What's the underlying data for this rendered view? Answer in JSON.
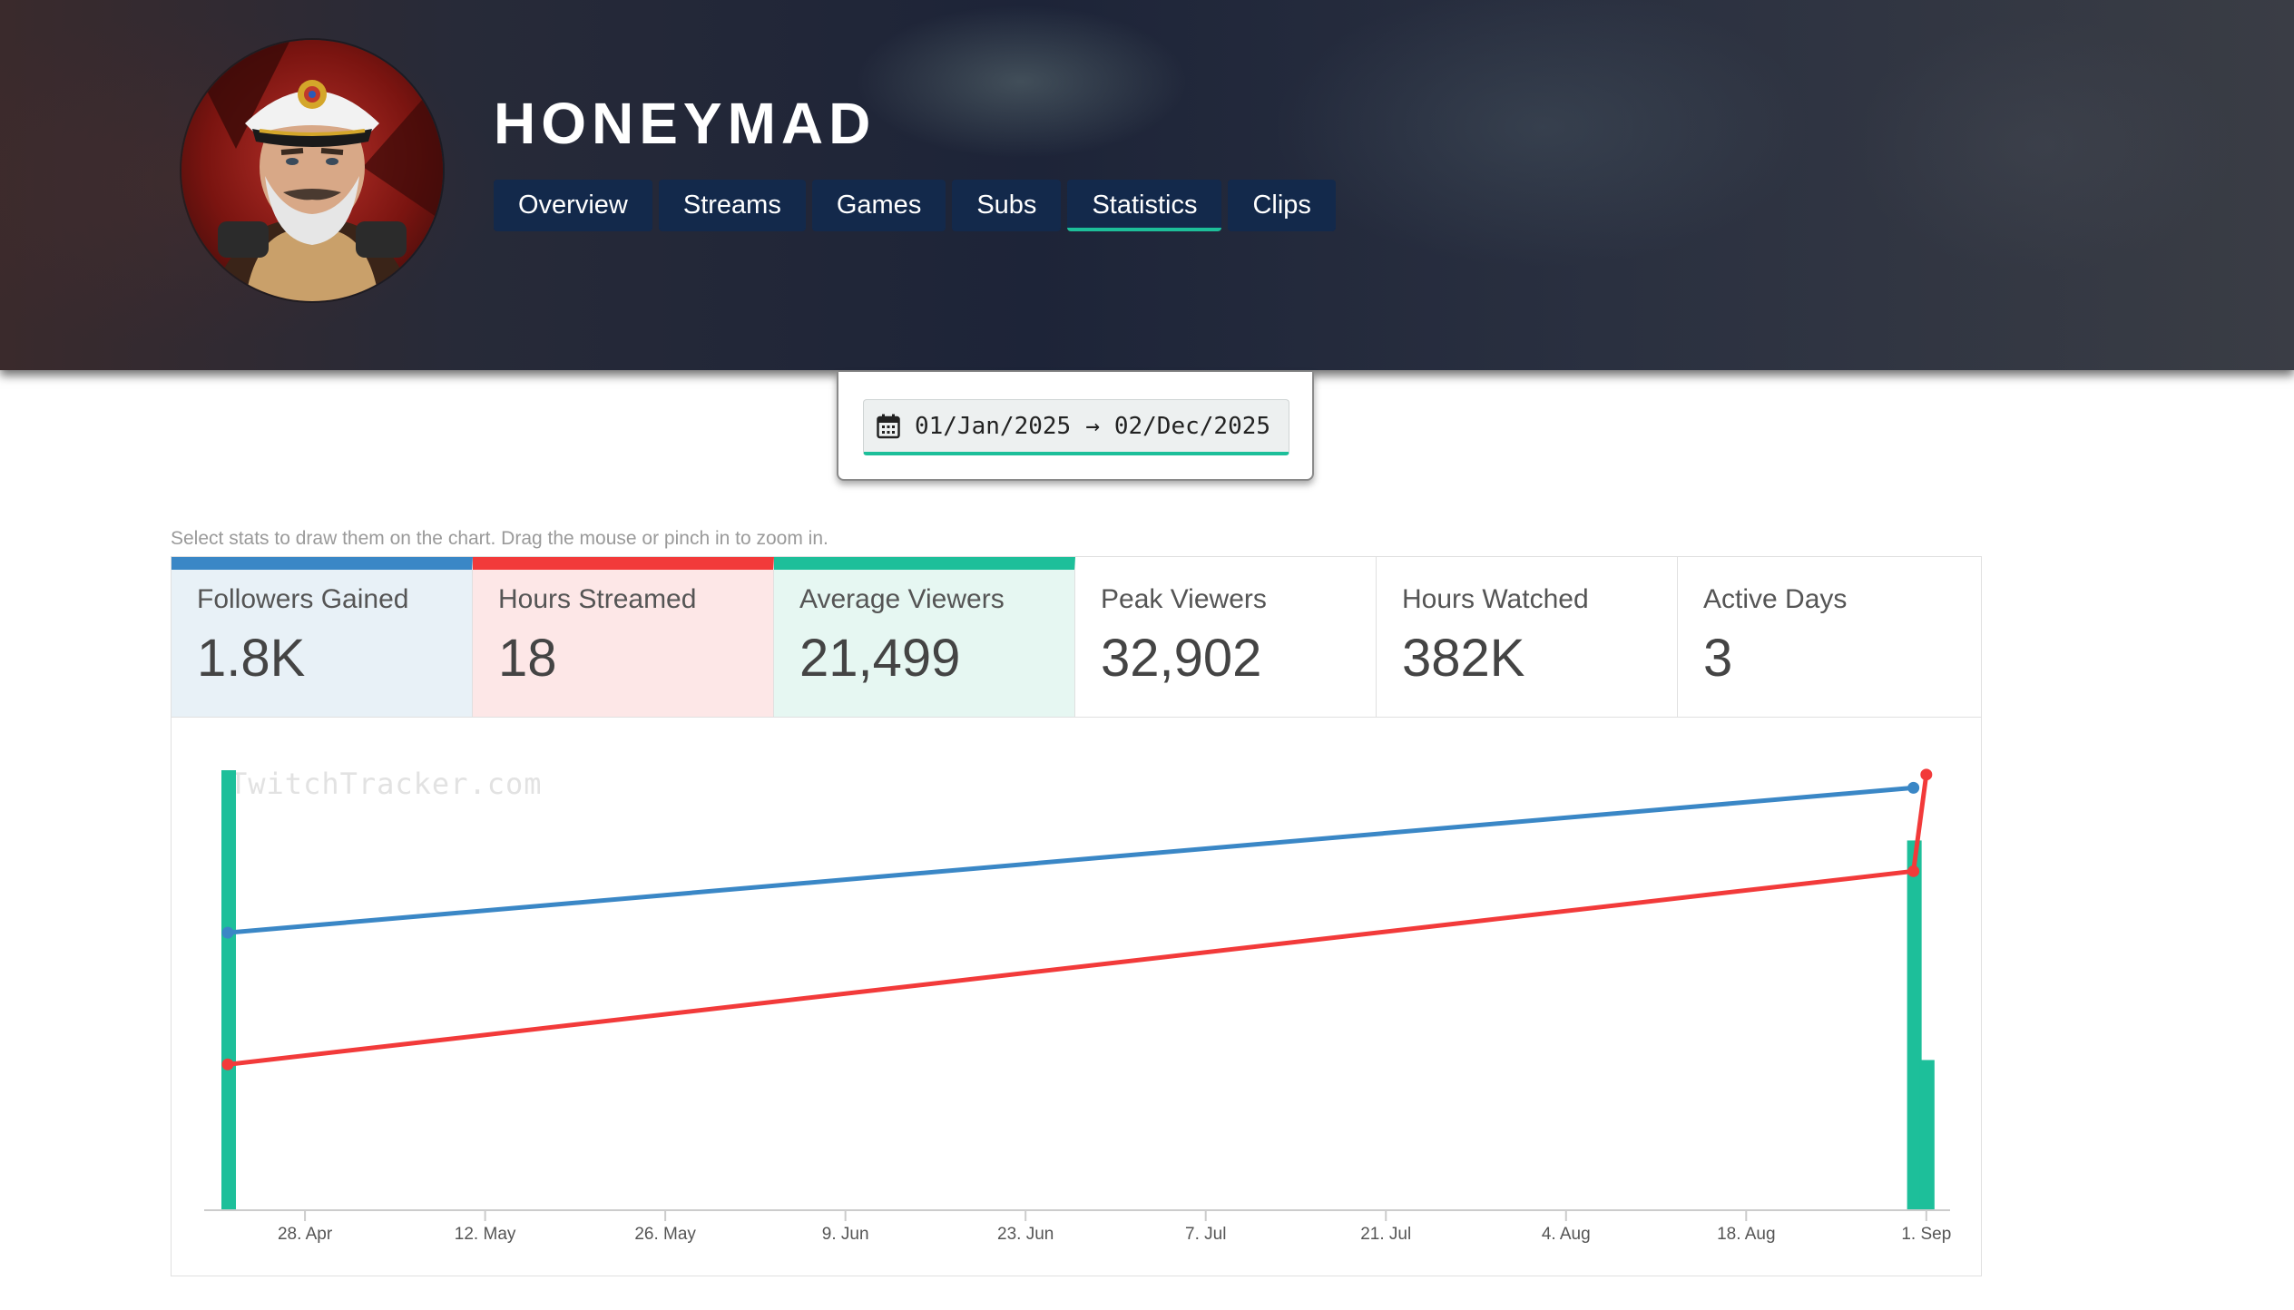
{
  "channel": {
    "name": "HONEYMAD"
  },
  "nav": {
    "tabs": [
      {
        "label": "Overview",
        "active": false
      },
      {
        "label": "Streams",
        "active": false
      },
      {
        "label": "Games",
        "active": false
      },
      {
        "label": "Subs",
        "active": false
      },
      {
        "label": "Statistics",
        "active": true
      },
      {
        "label": "Clips",
        "active": false
      }
    ]
  },
  "date_range": {
    "start": "01/Jan/2025",
    "arrow": "→",
    "end": "02/Dec/2025"
  },
  "hint": "Select stats to draw them on the chart. Drag the mouse or pinch in to zoom in.",
  "stats": [
    {
      "label": "Followers Gained",
      "value": "1.8K",
      "selected": true,
      "color": "#3a87c6",
      "bg": "#e8f1f7"
    },
    {
      "label": "Hours Streamed",
      "value": "18",
      "selected": true,
      "color": "#f23a3a",
      "bg": "#fde7e7"
    },
    {
      "label": "Average Viewers",
      "value": "21,499",
      "selected": true,
      "color": "#1dbf9a",
      "bg": "#e6f7f2"
    },
    {
      "label": "Peak Viewers",
      "value": "32,902",
      "selected": false
    },
    {
      "label": "Hours Watched",
      "value": "382K",
      "selected": false
    },
    {
      "label": "Active Days",
      "value": "3",
      "selected": false
    }
  ],
  "chart": {
    "watermark": "TwitchTracker.com"
  },
  "chart_data": {
    "type": "line",
    "xaxis_tick_labels": [
      "28. Apr",
      "12. May",
      "26. May",
      "9. Jun",
      "23. Jun",
      "7. Jul",
      "21. Jul",
      "4. Aug",
      "18. Aug",
      "1. Sep"
    ],
    "x_range": [
      "2025-04-22",
      "2025-09-02"
    ],
    "grid": false,
    "series": [
      {
        "name": "Followers Gained",
        "type": "line",
        "color": "#3a87c6",
        "points": [
          [
            "2025-04-22",
            0.63
          ],
          [
            "2025-08-31",
            0.96
          ]
        ]
      },
      {
        "name": "Hours Streamed",
        "type": "line",
        "color": "#f23a3a",
        "points": [
          [
            "2025-04-22",
            0.33
          ],
          [
            "2025-08-31",
            0.77
          ],
          [
            "2025-09-01",
            0.99
          ]
        ]
      },
      {
        "name": "Average Viewers",
        "type": "bar",
        "color": "#1dbf9a",
        "points": [
          [
            "2025-04-22",
            1.0
          ],
          [
            "2025-08-31",
            0.84
          ],
          [
            "2025-09-01",
            0.34
          ]
        ]
      }
    ],
    "y_normalized": true
  }
}
